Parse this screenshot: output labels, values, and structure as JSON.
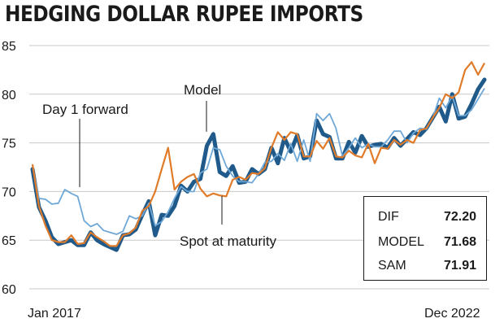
{
  "title": "HEDGING DOLLAR RUPEE IMPORTS",
  "x_axis": {
    "start_label": "Jan 2017",
    "end_label": "Dec 2022"
  },
  "annotations": {
    "model": "Model",
    "day1": "Day 1 forward",
    "spot": "Spot at maturity"
  },
  "stats": [
    {
      "label": "DIF",
      "value": "72.20"
    },
    {
      "label": "MODEL",
      "value": "71.68"
    },
    {
      "label": "SAM",
      "value": "71.91"
    }
  ],
  "colors": {
    "model": "#1f5a8a",
    "day1_forward": "#6fa8d6",
    "spot_at_maturity": "#e07b2a",
    "grid": "#c8c8c8",
    "text": "#1a1a1a"
  },
  "chart_data": {
    "type": "line",
    "title": "HEDGING DOLLAR RUPEE IMPORTS",
    "xlabel": "",
    "ylabel": "",
    "ylim": [
      60,
      85
    ],
    "yticks": [
      60,
      65,
      70,
      75,
      80,
      85
    ],
    "x_range": [
      "Jan 2017",
      "Dec 2022"
    ],
    "grid": "horizontal",
    "series": [
      {
        "name": "Model",
        "key": "model",
        "values": [
          72.3,
          68.4,
          67.0,
          65.3,
          64.6,
          64.8,
          65.0,
          64.5,
          64.5,
          65.8,
          65.0,
          64.6,
          64.3,
          64.0,
          65.5,
          65.6,
          66.1,
          67.6,
          69.0,
          65.5,
          67.6,
          67.5,
          68.5,
          70.6,
          70.0,
          71.0,
          71.3,
          74.7,
          75.9,
          72.0,
          71.6,
          72.6,
          70.9,
          71.0,
          72.3,
          71.8,
          72.3,
          74.5,
          72.9,
          75.5,
          74.1,
          75.8,
          73.4,
          73.6,
          77.3,
          75.9,
          75.6,
          73.4,
          73.4,
          75.1,
          74.0,
          75.7,
          74.6,
          74.8,
          74.9,
          74.5,
          75.5,
          74.7,
          75.4,
          76.1,
          75.8,
          76.5,
          77.6,
          78.7,
          77.2,
          80.0,
          77.5,
          77.7,
          79.0,
          80.5,
          81.5
        ]
      },
      {
        "name": "Day 1 forward",
        "key": "day1_forward",
        "values": [
          72.6,
          69.3,
          69.2,
          68.7,
          68.8,
          70.2,
          69.8,
          69.5,
          67.0,
          66.4,
          66.7,
          66.0,
          65.8,
          65.6,
          65.9,
          67.5,
          67.2,
          67.5,
          68.8,
          66.5,
          66.9,
          67.9,
          69.3,
          70.5,
          70.0,
          70.0,
          71.9,
          72.3,
          74.5,
          74.3,
          72.6,
          71.6,
          71.0,
          71.0,
          70.9,
          71.8,
          73.0,
          73.1,
          73.9,
          73.2,
          74.9,
          73.1,
          75.3,
          73.1,
          78.0,
          77.3,
          78.0,
          76.5,
          73.6,
          74.5,
          75.5,
          74.5,
          74.9,
          74.6,
          74.6,
          75.3,
          76.2,
          76.2,
          75.0,
          76.0,
          76.5,
          76.4,
          77.6,
          79.6,
          78.6,
          79.8,
          77.8,
          77.8,
          78.4,
          79.5,
          80.6
        ]
      },
      {
        "name": "Spot at maturity",
        "key": "spot_at_maturity",
        "values": [
          72.8,
          68.5,
          66.5,
          65.0,
          64.8,
          64.8,
          65.5,
          64.6,
          64.7,
          65.8,
          65.3,
          64.9,
          64.4,
          64.4,
          65.5,
          65.7,
          66.3,
          68.0,
          68.5,
          70.0,
          72.3,
          74.5,
          70.2,
          71.0,
          71.5,
          71.8,
          70.3,
          69.5,
          69.8,
          69.6,
          69.5,
          71.2,
          71.5,
          71.2,
          71.9,
          71.8,
          72.4,
          74.5,
          76.1,
          75.3,
          76.1,
          75.9,
          73.6,
          73.6,
          75.2,
          74.4,
          75.5,
          73.6,
          73.5,
          74.2,
          73.7,
          73.5,
          74.9,
          72.9,
          74.5,
          74.4,
          75.3,
          74.8,
          75.3,
          75.0,
          76.3,
          76.5,
          77.6,
          78.6,
          80.0,
          79.6,
          80.2,
          82.5,
          83.3,
          82.0,
          83.2
        ]
      }
    ]
  }
}
